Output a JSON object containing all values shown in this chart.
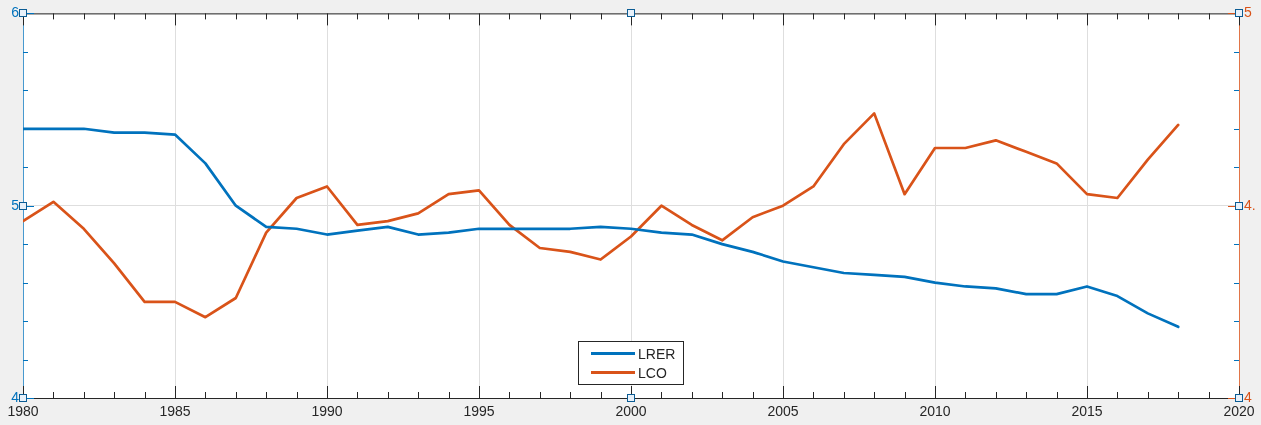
{
  "chart_data": {
    "type": "line",
    "x": [
      1980,
      1981,
      1982,
      1983,
      1984,
      1985,
      1986,
      1987,
      1988,
      1989,
      1990,
      1991,
      1992,
      1993,
      1994,
      1995,
      1996,
      1997,
      1998,
      1999,
      2000,
      2001,
      2002,
      2003,
      2004,
      2005,
      2006,
      2007,
      2008,
      2009,
      2010,
      2011,
      2012,
      2013,
      2014,
      2015,
      2016,
      2017,
      2018
    ],
    "xlim": [
      1980,
      2020
    ],
    "xticks": [
      1980,
      {
        "value": 1981,
        "label": null
      },
      {
        "value": 1982,
        "label": null
      },
      {
        "value": 1983,
        "label": null
      },
      {
        "value": 1984,
        "label": null
      },
      1985,
      {
        "value": 1986,
        "label": null
      },
      {
        "value": 1987,
        "label": null
      },
      {
        "value": 1988,
        "label": null
      },
      {
        "value": 1989,
        "label": null
      },
      1990,
      {
        "value": 1991,
        "label": null
      },
      {
        "value": 1992,
        "label": null
      },
      {
        "value": 1993,
        "label": null
      },
      {
        "value": 1994,
        "label": null
      },
      1995,
      {
        "value": 1996,
        "label": null
      },
      {
        "value": 1997,
        "label": null
      },
      {
        "value": 1998,
        "label": null
      },
      {
        "value": 1999,
        "label": null
      },
      2000,
      {
        "value": 2001,
        "label": null
      },
      {
        "value": 2002,
        "label": null
      },
      {
        "value": 2003,
        "label": null
      },
      {
        "value": 2004,
        "label": null
      },
      2005,
      {
        "value": 2006,
        "label": null
      },
      {
        "value": 2007,
        "label": null
      },
      {
        "value": 2008,
        "label": null
      },
      {
        "value": 2009,
        "label": null
      },
      2010,
      {
        "value": 2011,
        "label": null
      },
      {
        "value": 2012,
        "label": null
      },
      {
        "value": 2013,
        "label": null
      },
      {
        "value": 2014,
        "label": null
      },
      2015,
      {
        "value": 2016,
        "label": null
      },
      {
        "value": 2017,
        "label": null
      },
      {
        "value": 2018,
        "label": null
      },
      {
        "value": 2019,
        "label": null
      },
      2020
    ],
    "ylim": [
      4,
      6
    ],
    "yticks": [
      4,
      {
        "value": 4.2,
        "label": null
      },
      {
        "value": 4.4,
        "label": null
      },
      {
        "value": 4.6,
        "label": null
      },
      {
        "value": 4.8,
        "label": null
      },
      5,
      {
        "value": 5.2,
        "label": null
      },
      {
        "value": 5.4,
        "label": null
      },
      {
        "value": 5.6,
        "label": null
      },
      {
        "value": 5.8,
        "label": null
      },
      6
    ],
    "y2lim": [
      4,
      5
    ],
    "y2ticks": [
      4,
      {
        "value": 4.5,
        "label": "4."
      },
      5
    ],
    "series": [
      {
        "name": "LRER",
        "color": "#0072bd",
        "values": [
          5.4,
          5.4,
          5.4,
          5.38,
          5.38,
          5.37,
          5.22,
          5.0,
          4.89,
          4.88,
          4.85,
          4.87,
          4.89,
          4.85,
          4.86,
          4.88,
          4.88,
          4.88,
          4.88,
          4.89,
          4.88,
          4.86,
          4.85,
          4.8,
          4.76,
          4.71,
          4.68,
          4.65,
          4.64,
          4.63,
          4.6,
          4.58,
          4.57,
          4.54,
          4.54,
          4.58,
          4.53,
          4.44,
          4.37
        ]
      },
      {
        "name": "LCO",
        "color": "#d95319",
        "axis": "y2",
        "values": [
          4.46,
          4.51,
          4.44,
          4.35,
          4.25,
          4.25,
          4.21,
          4.26,
          4.43,
          4.52,
          4.55,
          4.45,
          4.46,
          4.48,
          4.53,
          4.54,
          4.45,
          4.39,
          4.38,
          4.36,
          4.42,
          4.5,
          4.45,
          4.41,
          4.47,
          4.5,
          4.55,
          4.66,
          4.74,
          4.53,
          4.65,
          4.65,
          4.67,
          4.64,
          4.61,
          4.53,
          4.52,
          4.62,
          4.71
        ]
      }
    ],
    "grid": true,
    "legend": "bottom",
    "marker": "none",
    "line_style": "solid"
  }
}
